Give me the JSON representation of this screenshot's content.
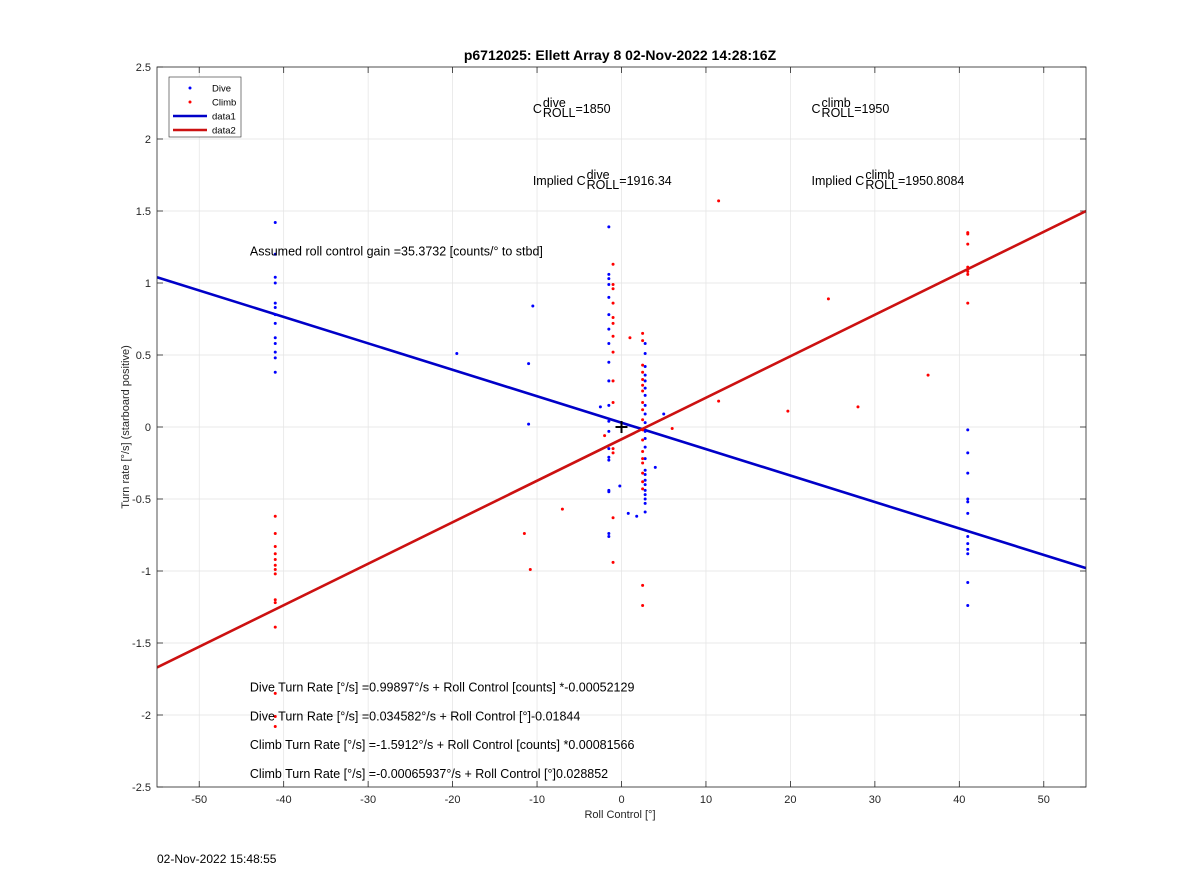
{
  "chart_data": {
    "type": "scatter",
    "title": "p6712025: Ellett Array 8 02-Nov-2022 14:28:16Z",
    "xlabel": "Roll Control [°]",
    "ylabel": "Turn rate [°/s] (starboard positive)",
    "xlim": [
      -55,
      55
    ],
    "ylim": [
      -2.5,
      2.5
    ],
    "xticks": [
      -50,
      -40,
      -30,
      -20,
      -10,
      0,
      10,
      20,
      30,
      40,
      50
    ],
    "yticks": [
      -2.5,
      -2,
      -1.5,
      -1,
      -0.5,
      0,
      0.5,
      1,
      1.5,
      2,
      2.5
    ],
    "grid": true,
    "legend_position": "top-left",
    "series": [
      {
        "name": "Dive",
        "kind": "points",
        "color": "#0000ff",
        "points": [
          [
            -41,
            1.42
          ],
          [
            -41,
            1.2
          ],
          [
            -41,
            1.04
          ],
          [
            -41,
            1.0
          ],
          [
            -41,
            0.86
          ],
          [
            -41,
            0.83
          ],
          [
            -41,
            0.78
          ],
          [
            -41,
            0.72
          ],
          [
            -41,
            0.62
          ],
          [
            -41,
            0.58
          ],
          [
            -41,
            0.52
          ],
          [
            -41,
            0.48
          ],
          [
            -41,
            0.38
          ],
          [
            -19.5,
            0.51
          ],
          [
            -10.5,
            0.84
          ],
          [
            -11,
            0.44
          ],
          [
            -11,
            0.02
          ],
          [
            -1.5,
            1.39
          ],
          [
            -1.5,
            1.06
          ],
          [
            -1.5,
            1.03
          ],
          [
            -1.5,
            0.99
          ],
          [
            -1.5,
            0.9
          ],
          [
            -1.5,
            0.78
          ],
          [
            -1.5,
            0.68
          ],
          [
            -1.5,
            0.58
          ],
          [
            -1.5,
            0.45
          ],
          [
            -1.5,
            0.32
          ],
          [
            -1.5,
            0.15
          ],
          [
            -1.5,
            0.04
          ],
          [
            -1.5,
            -0.03
          ],
          [
            -1.5,
            -0.15
          ],
          [
            -1.5,
            -0.21
          ],
          [
            -1.5,
            -0.23
          ],
          [
            -1.5,
            -0.44
          ],
          [
            -1.5,
            -0.45
          ],
          [
            -1.5,
            -0.74
          ],
          [
            -1.5,
            -0.76
          ],
          [
            -2.5,
            0.14
          ],
          [
            -0.2,
            -0.41
          ],
          [
            0.8,
            -0.6
          ],
          [
            1.8,
            -0.62
          ],
          [
            2.8,
            0.58
          ],
          [
            2.8,
            0.51
          ],
          [
            2.8,
            0.42
          ],
          [
            2.8,
            0.36
          ],
          [
            2.8,
            0.32
          ],
          [
            2.8,
            0.27
          ],
          [
            2.8,
            0.22
          ],
          [
            2.8,
            0.15
          ],
          [
            2.8,
            0.09
          ],
          [
            2.8,
            0.03
          ],
          [
            2.8,
            -0.03
          ],
          [
            2.8,
            -0.08
          ],
          [
            2.8,
            -0.14
          ],
          [
            2.8,
            -0.22
          ],
          [
            2.8,
            -0.3
          ],
          [
            2.8,
            -0.33
          ],
          [
            2.8,
            -0.37
          ],
          [
            2.8,
            -0.4
          ],
          [
            2.8,
            -0.44
          ],
          [
            2.8,
            -0.47
          ],
          [
            2.8,
            -0.5
          ],
          [
            2.8,
            -0.53
          ],
          [
            2.8,
            -0.59
          ],
          [
            4,
            -0.28
          ],
          [
            5,
            0.09
          ],
          [
            41,
            -0.02
          ],
          [
            41,
            -0.18
          ],
          [
            41,
            -0.32
          ],
          [
            41,
            -0.5
          ],
          [
            41,
            -0.52
          ],
          [
            41,
            -0.6
          ],
          [
            41,
            -0.76
          ],
          [
            41,
            -0.81
          ],
          [
            41,
            -0.85
          ],
          [
            41,
            -0.88
          ],
          [
            41,
            -1.08
          ],
          [
            41,
            -1.24
          ]
        ]
      },
      {
        "name": "Climb",
        "kind": "points",
        "color": "#ff0000",
        "points": [
          [
            -41,
            -0.62
          ],
          [
            -41,
            -0.74
          ],
          [
            -41,
            -0.83
          ],
          [
            -41,
            -0.88
          ],
          [
            -41,
            -0.92
          ],
          [
            -41,
            -0.96
          ],
          [
            -41,
            -0.99
          ],
          [
            -41,
            -1.02
          ],
          [
            -41,
            -1.2
          ],
          [
            -41,
            -1.22
          ],
          [
            -41,
            -1.39
          ],
          [
            -41,
            -1.85
          ],
          [
            -41,
            -2.01
          ],
          [
            -41,
            -2.08
          ],
          [
            -11.5,
            -0.74
          ],
          [
            -10.8,
            -0.99
          ],
          [
            -7,
            -0.57
          ],
          [
            -2,
            -0.06
          ],
          [
            -1,
            1.13
          ],
          [
            -1,
            0.99
          ],
          [
            -1,
            0.96
          ],
          [
            -1,
            0.86
          ],
          [
            -1,
            0.76
          ],
          [
            -1,
            0.72
          ],
          [
            -1,
            0.63
          ],
          [
            -1,
            0.52
          ],
          [
            -1,
            0.32
          ],
          [
            -1,
            0.17
          ],
          [
            -1,
            -0.15
          ],
          [
            -1,
            -0.18
          ],
          [
            -1,
            -0.63
          ],
          [
            -1,
            -0.94
          ],
          [
            1,
            0.62
          ],
          [
            2.5,
            0.65
          ],
          [
            2.5,
            0.6
          ],
          [
            2.5,
            0.43
          ],
          [
            2.5,
            0.38
          ],
          [
            2.5,
            0.33
          ],
          [
            2.5,
            0.29
          ],
          [
            2.5,
            0.25
          ],
          [
            2.5,
            0.17
          ],
          [
            2.5,
            0.12
          ],
          [
            2.5,
            0.05
          ],
          [
            2.5,
            -0.02
          ],
          [
            2.5,
            -0.09
          ],
          [
            2.5,
            -0.17
          ],
          [
            2.5,
            -0.22
          ],
          [
            2.5,
            -0.25
          ],
          [
            2.5,
            -0.32
          ],
          [
            2.5,
            -0.38
          ],
          [
            2.5,
            -0.43
          ],
          [
            2.5,
            -1.1
          ],
          [
            2.5,
            -1.24
          ],
          [
            6,
            -0.01
          ],
          [
            11.5,
            1.57
          ],
          [
            11.5,
            0.18
          ],
          [
            19.7,
            0.11
          ],
          [
            24.5,
            0.89
          ],
          [
            28,
            0.14
          ],
          [
            36.3,
            0.36
          ],
          [
            41,
            1.34
          ],
          [
            41,
            1.35
          ],
          [
            41,
            1.27
          ],
          [
            41,
            1.11
          ],
          [
            41,
            1.08
          ],
          [
            41,
            1.06
          ],
          [
            41,
            0.86
          ]
        ]
      },
      {
        "name": "data1",
        "kind": "line",
        "color": "#0000c8",
        "x": [
          -55,
          55
        ],
        "y": [
          1.04,
          -0.98
        ]
      },
      {
        "name": "data2",
        "kind": "line",
        "color": "#cc1111",
        "x": [
          -55,
          55
        ],
        "y": [
          -1.67,
          1.5
        ]
      }
    ],
    "marker": {
      "x": 0,
      "y": 0,
      "symbol": "+"
    },
    "annotations": [
      {
        "x": -10.5,
        "y": 2.21,
        "main": "C",
        "sup": "dive",
        "sub": "ROLL",
        "tail": " =1850"
      },
      {
        "x": 22.5,
        "y": 2.21,
        "main": "C",
        "sup": "climb",
        "sub": "ROLL",
        "tail": " =1950"
      },
      {
        "x": -10.5,
        "y": 1.71,
        "main": "Implied C",
        "sup": "dive",
        "sub": "ROLL",
        "tail": " =1916.34"
      },
      {
        "x": 22.5,
        "y": 1.71,
        "main": "Implied C",
        "sup": "climb",
        "sub": "ROLL",
        "tail": " =1950.8084"
      },
      {
        "x": -44,
        "y": 1.22,
        "text": "Assumed roll control gain =35.3732 [counts/° to stbd]"
      },
      {
        "x": -44,
        "y": -1.81,
        "text": "Dive Turn Rate [°/s] =0.99897°/s + Roll Control [counts] *-0.00052129"
      },
      {
        "x": -44,
        "y": -2.01,
        "text": "Dive Turn Rate [°/s] =0.034582°/s + Roll Control [°]-0.01844"
      },
      {
        "x": -44,
        "y": -2.21,
        "text": "Climb Turn Rate [°/s] =-1.5912°/s + Roll Control [counts] *0.00081566"
      },
      {
        "x": -44,
        "y": -2.41,
        "text": "Climb Turn Rate [°/s] =-0.00065937°/s + Roll Control [°]0.028852"
      }
    ]
  },
  "footer": {
    "timestamp": "02-Nov-2022 15:48:55"
  }
}
